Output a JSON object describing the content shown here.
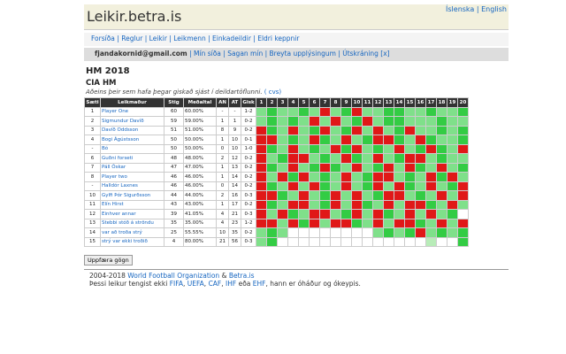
{
  "header": {
    "title": "Leikir.betra.is",
    "languages": [
      "Íslenska",
      "English"
    ]
  },
  "nav": [
    "Forsíða",
    "Reglur",
    "Leikir",
    "Leikmenn",
    "Einkadeildir",
    "Eldri keppnir"
  ],
  "user_bar": {
    "email": "fjandakornid@gmail.com",
    "links": [
      "Mín síða",
      "Sagan mín",
      "Breyta upplýsingum",
      "Útskráning [x]"
    ]
  },
  "heading": "HM 2018",
  "subheading": "CIA HM",
  "note": "Aðeins þeir sem hafa þegar giskað sjást í deildartöflunni.",
  "note_link": "( cvs)",
  "table": {
    "headers": [
      "Sæti",
      "Leikmaður",
      "Stig",
      "Meðaltal",
      "AN",
      "AT",
      "Gisk",
      "1",
      "2",
      "3",
      "4",
      "5",
      "6",
      "7",
      "8",
      "9",
      "10",
      "11",
      "12",
      "13",
      "14",
      "15",
      "16",
      "17",
      "18",
      "19",
      "20"
    ],
    "colors": {
      "g": "#33cc44",
      "l": "#7fe08a",
      "p": "#b8ecb8",
      "r": "#e01818",
      "w": "#ffffff"
    },
    "rows": [
      {
        "cells": [
          "1",
          "Player One",
          "60",
          "60.00%",
          "-",
          "-",
          "1-2"
        ],
        "games": "lgllglrlgrllggllgllg"
      },
      {
        "cells": [
          "2",
          "Sigmundur Davíð",
          "59",
          "59.00%",
          "1",
          "1",
          "0-2"
        ],
        "games": "lglglrlrlgrlgglllgll"
      },
      {
        "cells": [
          "3",
          "Davíð Oddsson",
          "51",
          "51.00%",
          "8",
          "9",
          "0-2"
        ],
        "games": "rglrlgrlgrlrlgrllglg"
      },
      {
        "cells": [
          "4",
          "Bogi Ágústsson",
          "50",
          "50.00%",
          "1",
          "10",
          "0-1"
        ],
        "games": "rrlglrglrlgrrglrgllg"
      },
      {
        "cells": [
          "-",
          "Bó",
          "50",
          "50.00%",
          "0",
          "10",
          "1-0"
        ],
        "games": "rglrlglrgrlglrlgrglr"
      },
      {
        "cells": [
          "6",
          "Guðni forseti",
          "48",
          "48.00%",
          "2",
          "12",
          "0-2"
        ],
        "games": "rlgrrlglrglrlgrrlgll"
      },
      {
        "cells": [
          "7",
          "Páll Óskar",
          "47",
          "47.00%",
          "1",
          "13",
          "0-2"
        ],
        "games": "rglrlgrglrlgrlrglrlg"
      },
      {
        "cells": [
          "8",
          "Player two",
          "46",
          "46.00%",
          "1",
          "14",
          "0-2"
        ],
        "games": "rlrgrlglrlgrrlglrgrl"
      },
      {
        "cells": [
          "-",
          "Halldór Laxnes",
          "46",
          "46.00%",
          "0",
          "14",
          "0-2"
        ],
        "games": "rglrlrglrlgrlrglrlgr"
      },
      {
        "cells": [
          "10",
          "Gylfi Þór Sigurðsson",
          "44",
          "44.00%",
          "2",
          "16",
          "0-3"
        ],
        "games": "rrglrlgrlrlgrrlglrlr"
      },
      {
        "cells": [
          "11",
          "Elín Hirst",
          "43",
          "43.00%",
          "1",
          "17",
          "0-2"
        ],
        "games": "rglrrlgrlrglrlrrglrl"
      },
      {
        "cells": [
          "12",
          "Einhver annar",
          "39",
          "41.05%",
          "4",
          "21",
          "0-3"
        ],
        "games": "rlrglrrlgrlrglrlrlgw"
      },
      {
        "cells": [
          "13",
          "Stebbi stóð á ströndu",
          "35",
          "35.00%",
          "4",
          "23",
          "1-2"
        ],
        "games": "rrlrgrlrrglrlrrglrlr"
      },
      {
        "cells": [
          "14",
          "var að troða strý",
          "25",
          "55.55%",
          "10",
          "35",
          "0-2"
        ],
        "games": "lglwwwwwwwwlglgrlglg"
      },
      {
        "cells": [
          "15",
          "strý var ekki troðið",
          "4",
          "80.00%",
          "21",
          "56",
          "0-3"
        ],
        "games": "lgwwwwwwwwwwwwwwpwwg"
      }
    ]
  },
  "button": "Uppfæra gögn",
  "footer": {
    "line1": [
      "2004-2018",
      "World Football Organization",
      "&",
      "Betra.is"
    ],
    "line2": [
      "Þessi leikur tengist ekki",
      "FIFA",
      ",",
      "UEFA",
      ",",
      "CAF",
      ",",
      "IHF",
      "eða",
      "EHF",
      ", hann er óháður og ókeypis."
    ]
  }
}
